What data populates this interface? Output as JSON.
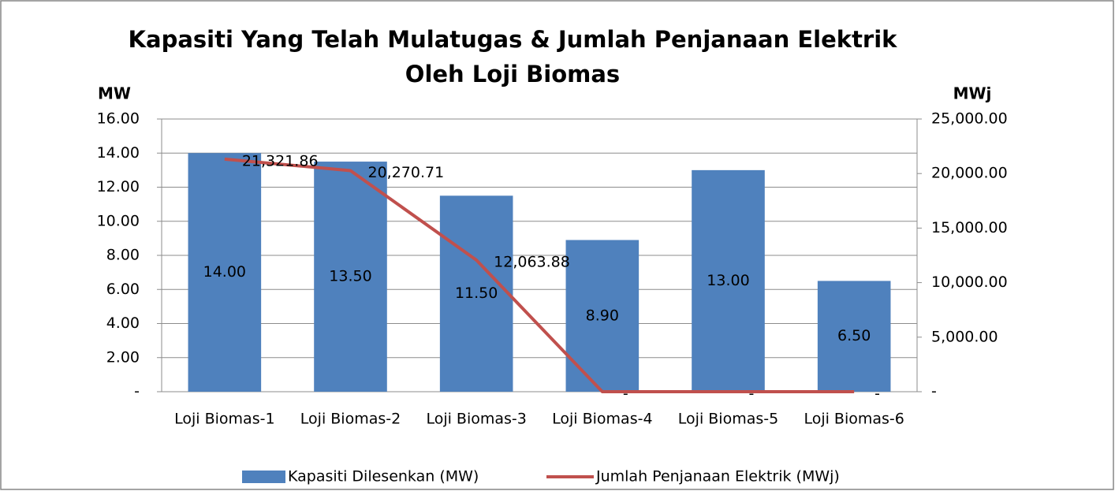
{
  "chart_data": {
    "type": "combo",
    "title": [
      "Kapasiti Yang Telah Mulatugas & Jumlah Penjanaan Elektrik",
      "Oleh Loji Biomas"
    ],
    "y_label": "MW",
    "y2_label": "MWj",
    "categories": [
      "Loji Biomas-1",
      "Loji Biomas-2",
      "Loji Biomas-3",
      "Loji Biomas-4",
      "Loji Biomas-5",
      "Loji Biomas-6"
    ],
    "series": [
      {
        "name": "Kapasiti Dilesenkan (MW)",
        "type": "bar",
        "color": "#4f81bd",
        "values": [
          14,
          13.5,
          11.5,
          8.9,
          13,
          6.5
        ],
        "value_labels": [
          "14.00",
          "13.50",
          "11.50",
          "8.90",
          "13.00",
          "6.50"
        ]
      },
      {
        "name": "Jumlah Penjanaan Elektrik (MWj)",
        "type": "line",
        "axis": "y2",
        "color": "#c0504d",
        "values": [
          21321.86,
          20270.71,
          12063.88,
          0,
          0,
          0
        ],
        "value_labels": [
          "21,321.86",
          "20,270.71",
          "12,063.88",
          "-",
          "-",
          "-"
        ]
      }
    ],
    "ylim": [
      0,
      16
    ],
    "yticks": [
      {
        "value": 0,
        "label": "-"
      },
      {
        "value": 2,
        "label": "2.00"
      },
      {
        "value": 4,
        "label": "4.00"
      },
      {
        "value": 6,
        "label": "6.00"
      },
      {
        "value": 8,
        "label": "8.00"
      },
      {
        "value": 10,
        "label": "10.00"
      },
      {
        "value": 12,
        "label": "12.00"
      },
      {
        "value": 14,
        "label": "14.00"
      },
      {
        "value": 16,
        "label": "16.00"
      }
    ],
    "y2lim": [
      0,
      25000
    ],
    "y2ticks": [
      {
        "value": 0,
        "label": "-"
      },
      {
        "value": 5000,
        "label": "5,000.00"
      },
      {
        "value": 10000,
        "label": "10,000.00"
      },
      {
        "value": 15000,
        "label": "15,000.00"
      },
      {
        "value": 20000,
        "label": "20,000.00"
      },
      {
        "value": 25000,
        "label": "25,000.00"
      }
    ],
    "grid": true,
    "legend": "bottom"
  }
}
